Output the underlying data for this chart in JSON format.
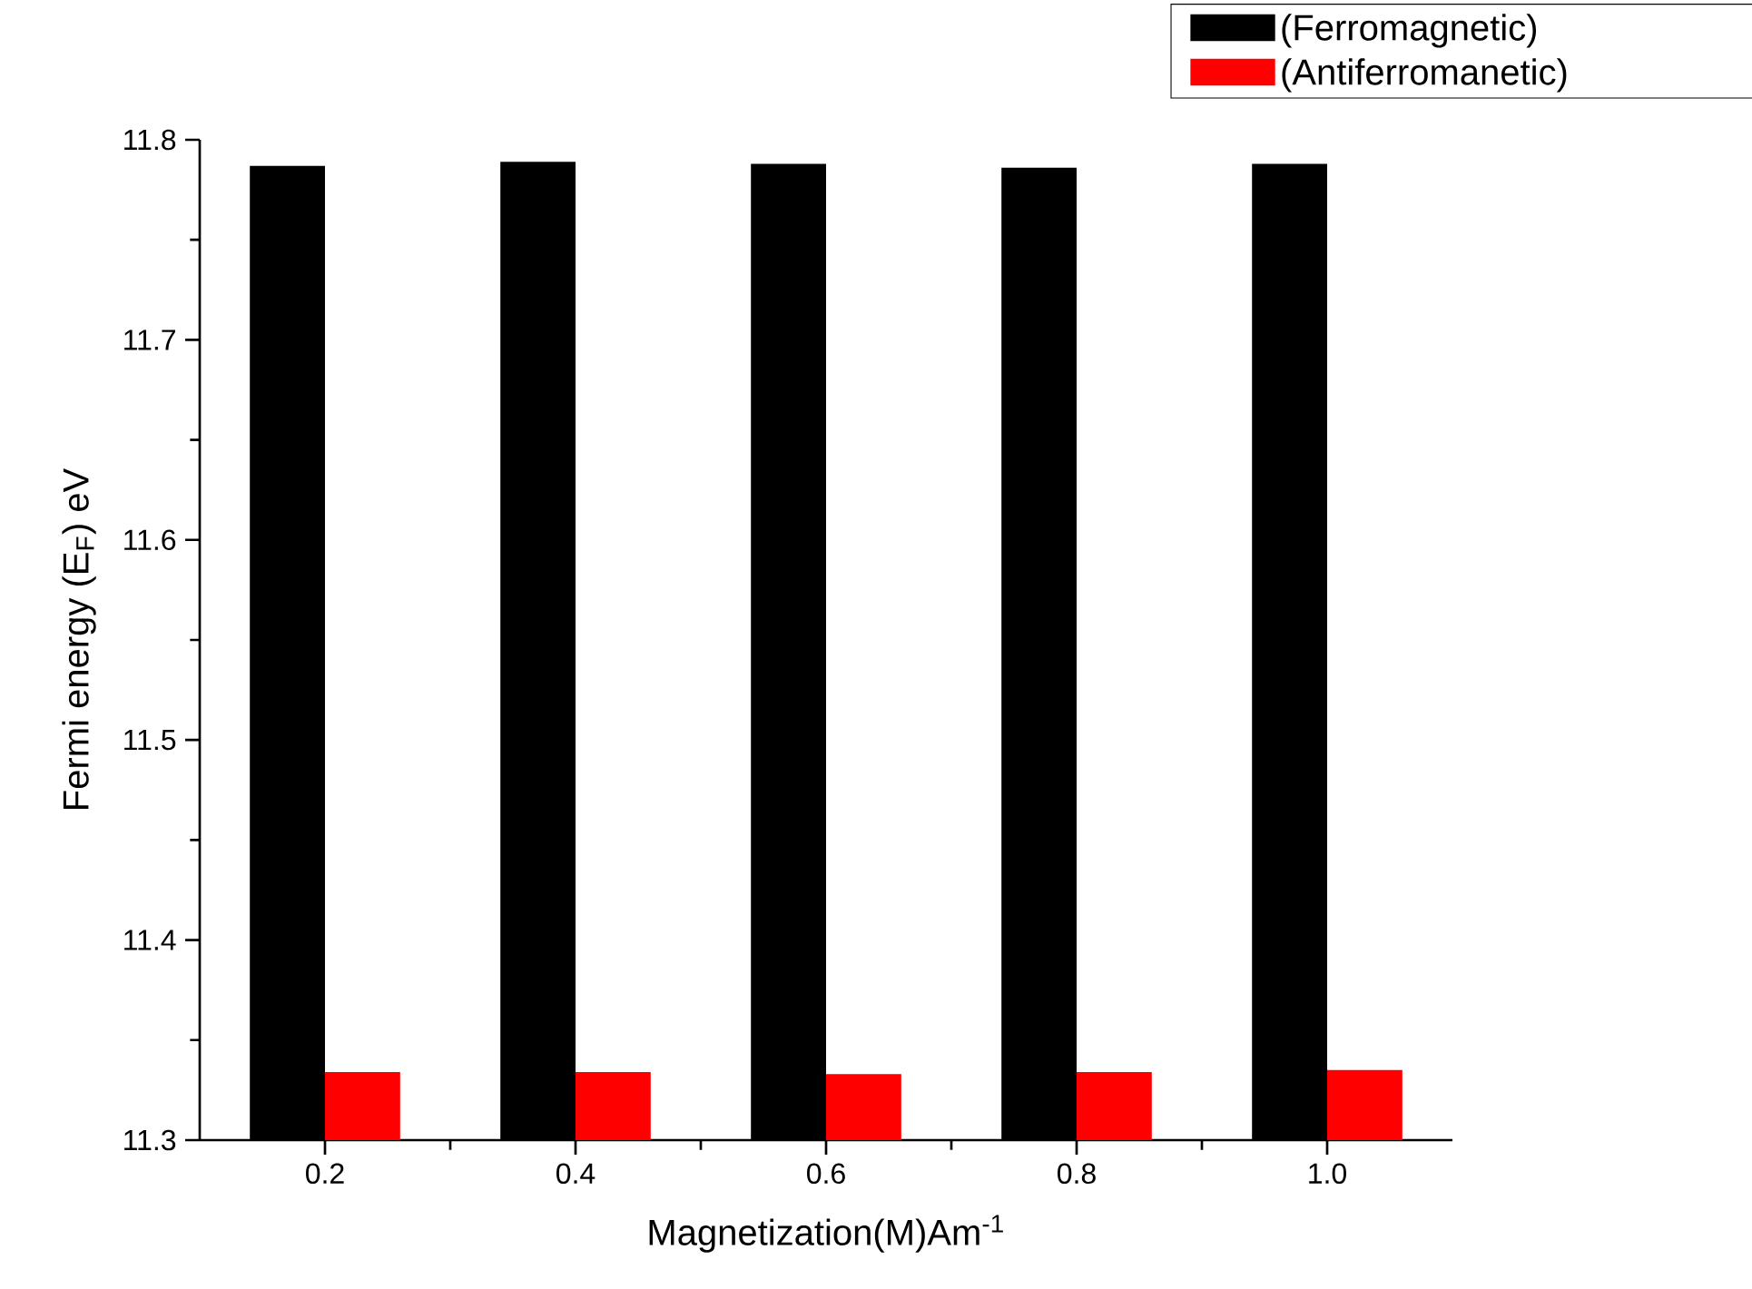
{
  "chart_data": {
    "type": "bar",
    "xlabel": "Magnetization(M)Am$^{-1}$",
    "ylabel": "Fermi energy (E$_{F}$) eV",
    "x": [
      0.2,
      0.4,
      0.6,
      0.8,
      1.0
    ],
    "series": [
      {
        "name": "(Ferromagnetic)",
        "color": "#000000",
        "values": [
          11.787,
          11.789,
          11.788,
          11.786,
          11.788
        ]
      },
      {
        "name": "(Antiferromanetic)",
        "color": "#ff0000",
        "values": [
          11.334,
          11.334,
          11.333,
          11.334,
          11.335
        ]
      }
    ],
    "xlim": [
      0.1,
      1.1
    ],
    "xticks": [
      0.2,
      0.4,
      0.6,
      0.8,
      {
        "value": 1.0,
        "label": "1.0"
      }
    ],
    "ylim": [
      11.3,
      11.8
    ],
    "yticks": [
      11.3,
      11.4,
      11.5,
      11.6,
      11.7,
      11.8
    ],
    "legend": "top right"
  }
}
